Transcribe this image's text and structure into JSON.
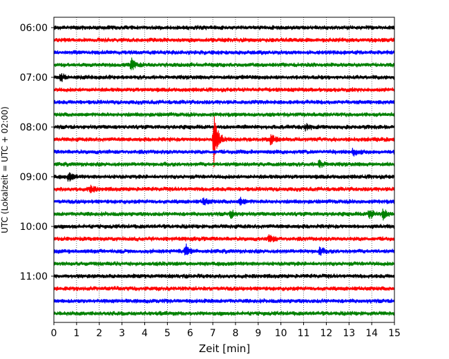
{
  "chart_data": {
    "type": "line",
    "chart_kind": "helicorder",
    "xlabel": "Zeit  [min]",
    "ylabel": "UTC (Lokalzeit = UTC + 02:00)",
    "xlim": [
      0,
      15
    ],
    "x_ticks": [
      "0",
      "1",
      "2",
      "3",
      "4",
      "5",
      "6",
      "7",
      "8",
      "9",
      "10",
      "11",
      "12",
      "13",
      "14",
      "15"
    ],
    "y_tick_labels": [
      "06:00",
      "07:00",
      "08:00",
      "09:00",
      "10:00",
      "11:00"
    ],
    "y_tick_rows": [
      0,
      4,
      8,
      12,
      16,
      20
    ],
    "grid_x": "dotted vertical lines at each minute",
    "colors": [
      "#000000",
      "#ff0000",
      "#0000ff",
      "#008000"
    ],
    "trace_rows": 24,
    "trace_minutes_per_row": 15,
    "events": [
      {
        "row": 3,
        "x": 3.4,
        "amplitude": 0.35
      },
      {
        "row": 9,
        "x": 7.05,
        "amplitude": 1.4
      },
      {
        "row": 9,
        "x": 9.55,
        "amplitude": 0.3
      },
      {
        "row": 10,
        "x": 13.2,
        "amplitude": 0.2
      },
      {
        "row": 11,
        "x": 11.7,
        "amplitude": 0.2
      },
      {
        "row": 12,
        "x": 0.65,
        "amplitude": 0.25
      },
      {
        "row": 13,
        "x": 1.6,
        "amplitude": 0.2
      },
      {
        "row": 14,
        "x": 6.6,
        "amplitude": 0.2
      },
      {
        "row": 14,
        "x": 8.2,
        "amplitude": 0.2
      },
      {
        "row": 15,
        "x": 7.8,
        "amplitude": 0.2
      },
      {
        "row": 15,
        "x": 13.9,
        "amplitude": 0.3
      },
      {
        "row": 15,
        "x": 14.5,
        "amplitude": 0.3
      },
      {
        "row": 17,
        "x": 9.5,
        "amplitude": 0.25
      },
      {
        "row": 18,
        "x": 5.8,
        "amplitude": 0.35
      },
      {
        "row": 18,
        "x": 11.7,
        "amplitude": 0.2
      },
      {
        "row": 8,
        "x": 11.1,
        "amplitude": 0.15
      },
      {
        "row": 4,
        "x": 0.3,
        "amplitude": 0.2
      }
    ]
  }
}
